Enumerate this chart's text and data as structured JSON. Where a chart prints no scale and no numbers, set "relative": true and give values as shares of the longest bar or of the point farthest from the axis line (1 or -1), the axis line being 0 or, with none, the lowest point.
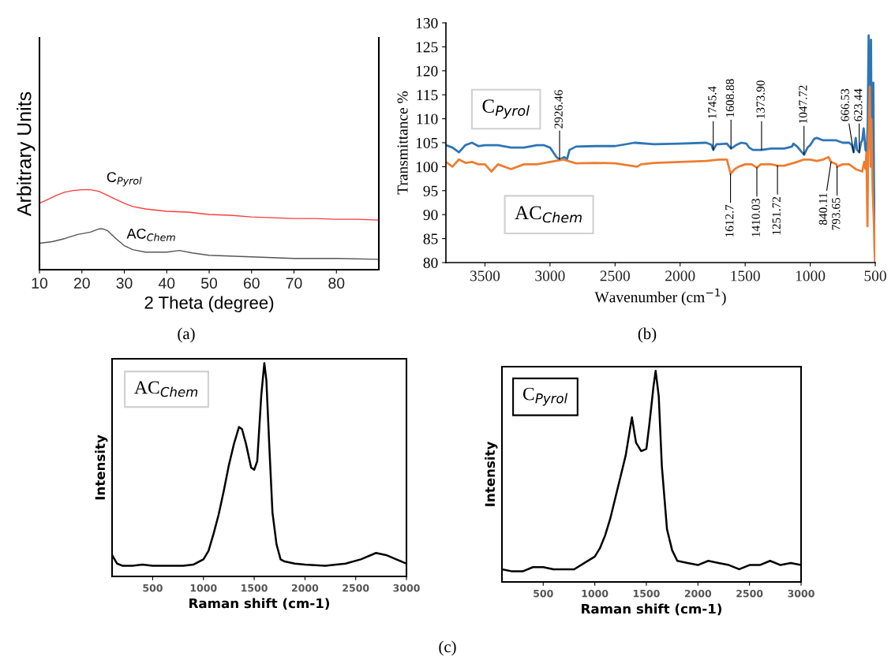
{
  "chart_data": [
    {
      "type": "line",
      "relative": true,
      "xlabel": "2 Theta (degree)",
      "ylabel": "Arbitrary Units",
      "xlim": [
        10,
        90
      ],
      "xticks": [
        10,
        20,
        30,
        40,
        50,
        60,
        70,
        80
      ],
      "annotations": [
        "(a)"
      ],
      "series": [
        {
          "name": "C$_{Pyrol}$",
          "color": "#ff3b3b",
          "x": [
            10,
            12,
            14,
            16,
            18,
            20,
            22,
            24,
            26,
            28,
            30,
            32,
            35,
            40,
            45,
            50,
            55,
            60,
            65,
            70,
            75,
            80,
            85,
            90
          ],
          "values": [
            0.83,
            0.88,
            0.93,
            0.97,
            0.99,
            1.0,
            1.0,
            0.98,
            0.93,
            0.88,
            0.83,
            0.79,
            0.76,
            0.73,
            0.72,
            0.69,
            0.68,
            0.66,
            0.65,
            0.64,
            0.64,
            0.63,
            0.63,
            0.62
          ]
        },
        {
          "name": "AC$_{Chem}$",
          "color": "#555555",
          "x": [
            10,
            13,
            16,
            19,
            22,
            24,
            25,
            26,
            28,
            30,
            32,
            35,
            40,
            43,
            46,
            50,
            55,
            60,
            65,
            70,
            80,
            90
          ],
          "values": [
            0.33,
            0.35,
            0.39,
            0.44,
            0.47,
            0.51,
            0.51,
            0.49,
            0.39,
            0.3,
            0.25,
            0.22,
            0.22,
            0.24,
            0.21,
            0.18,
            0.17,
            0.16,
            0.15,
            0.14,
            0.14,
            0.13
          ]
        }
      ]
    },
    {
      "type": "line",
      "xlabel": "Wavenumber (cm$^{−1}$)",
      "ylabel": "Transmittance %",
      "xlim": [
        3800,
        500
      ],
      "xticks": [
        3500,
        3000,
        2500,
        2000,
        1500,
        1000,
        500
      ],
      "ylim": [
        80,
        130
      ],
      "yticks": [
        80,
        85,
        90,
        95,
        100,
        105,
        110,
        115,
        120,
        125,
        130
      ],
      "annotations": [
        "(b)",
        {
          "text": "2926.46",
          "x": 2926.46,
          "y": 101.5
        },
        {
          "text": "1745.4",
          "x": 1745.4,
          "y": 103.5
        },
        {
          "text": "1608.88",
          "x": 1608.88,
          "y": 103.8
        },
        {
          "text": "1373.90",
          "x": 1373.9,
          "y": 103.5
        },
        {
          "text": "1047.72",
          "x": 1047.72,
          "y": 102.5
        },
        {
          "text": "666.53",
          "x": 666.53,
          "y": 103
        },
        {
          "text": "623.44",
          "x": 623.44,
          "y": 103
        },
        {
          "text": "1612.7",
          "x": 1612.7,
          "y": 98.5
        },
        {
          "text": "1410.03",
          "x": 1410.03,
          "y": 99.8
        },
        {
          "text": "1251.72",
          "x": 1251.72,
          "y": 100.2
        },
        {
          "text": "840.11",
          "x": 840.11,
          "y": 101
        },
        {
          "text": "793.65",
          "x": 793.65,
          "y": 100
        }
      ],
      "series": [
        {
          "name": "C$_{Pyrol}$",
          "color": "#2e75b6",
          "x": [
            3800,
            3750,
            3700,
            3650,
            3600,
            3550,
            3500,
            3400,
            3300,
            3200,
            3100,
            3050,
            3000,
            2950,
            2926,
            2890,
            2870,
            2850,
            2800,
            2650,
            2500,
            2350,
            2200,
            2000,
            1800,
            1760,
            1745,
            1720,
            1700,
            1640,
            1608,
            1570,
            1530,
            1490,
            1470,
            1440,
            1373,
            1300,
            1200,
            1140,
            1130,
            1100,
            1070,
            1047,
            1020,
            1000,
            970,
            950,
            900,
            850,
            800,
            750,
            700,
            680,
            666,
            650,
            640,
            623,
            610,
            600,
            589,
            575,
            565,
            558,
            551,
            545,
            540,
            533,
            528,
            520,
            515,
            510,
            505,
            500
          ],
          "values": [
            104.5,
            104,
            103,
            104.5,
            105,
            104.3,
            104.5,
            104.5,
            104,
            104,
            104.5,
            104.5,
            104,
            102,
            101.5,
            102,
            101.5,
            103.5,
            104.2,
            104.3,
            104.3,
            105,
            104.7,
            104.8,
            105,
            104.6,
            103.5,
            104.7,
            104.7,
            104.8,
            103.8,
            104.5,
            105,
            104.8,
            104,
            103.5,
            103.5,
            103.8,
            103.8,
            104.2,
            104.8,
            104.2,
            103.2,
            102.5,
            104,
            104.5,
            105.8,
            106,
            105.5,
            105.5,
            105.5,
            105,
            105,
            104.5,
            103,
            106,
            103.5,
            103,
            105,
            105.5,
            108,
            103.5,
            103,
            109,
            127.4,
            110,
            104,
            126.5,
            104,
            105,
            117.5,
            96,
            88,
            80
          ]
        },
        {
          "name": "AC$_{Chem}$",
          "color": "#ed7d31",
          "x": [
            3800,
            3750,
            3700,
            3650,
            3600,
            3550,
            3500,
            3450,
            3400,
            3300,
            3200,
            3100,
            3000,
            2900,
            2800,
            2650,
            2500,
            2330,
            2300,
            2200,
            2000,
            1800,
            1700,
            1640,
            1612,
            1580,
            1550,
            1500,
            1450,
            1410,
            1380,
            1300,
            1250,
            1200,
            1100,
            1050,
            1000,
            950,
            900,
            860,
            840,
            800,
            793,
            750,
            700,
            650,
            600,
            585,
            575,
            568,
            560,
            555,
            548,
            542,
            536,
            530,
            520,
            510,
            505,
            500
          ],
          "values": [
            101,
            100,
            101.5,
            100.8,
            101,
            100.5,
            100.5,
            99,
            100.5,
            99.5,
            100.5,
            100.5,
            101,
            101.5,
            100.7,
            100.8,
            100.7,
            100,
            100.5,
            100.8,
            101,
            101.2,
            101.5,
            101.5,
            98.5,
            99.5,
            100,
            100.5,
            100.5,
            99.8,
            100.5,
            100.5,
            100.2,
            100.2,
            101,
            101.5,
            101.5,
            101.2,
            101.5,
            102,
            101,
            100.5,
            100,
            100.5,
            100.5,
            99.5,
            99,
            101,
            99.5,
            103,
            87.6,
            104,
            110,
            116.7,
            100,
            110,
            95,
            88,
            82,
            80
          ]
        }
      ]
    },
    {
      "type": "line",
      "relative": true,
      "xlabel": "Raman shift (cm-1)",
      "ylabel": "Intensity",
      "xlim": [
        100,
        3000
      ],
      "xticks": [
        500,
        1000,
        1500,
        2000,
        2500,
        3000
      ],
      "annotations": [
        "(c)"
      ],
      "series": [
        {
          "name": "AC$_{Chem}$",
          "color": "#000000",
          "x": [
            100,
            150,
            200,
            300,
            400,
            500,
            600,
            700,
            800,
            900,
            1000,
            1050,
            1100,
            1150,
            1200,
            1250,
            1300,
            1350,
            1380,
            1420,
            1470,
            1500,
            1530,
            1570,
            1600,
            1620,
            1650,
            1680,
            1720,
            1760,
            1800,
            1900,
            2000,
            2200,
            2400,
            2550,
            2700,
            2800,
            2900,
            3000
          ],
          "values": [
            0.1,
            0.06,
            0.05,
            0.05,
            0.055,
            0.05,
            0.05,
            0.05,
            0.05,
            0.055,
            0.08,
            0.12,
            0.2,
            0.29,
            0.4,
            0.52,
            0.62,
            0.7,
            0.69,
            0.62,
            0.51,
            0.5,
            0.54,
            0.85,
            1.0,
            0.92,
            0.6,
            0.3,
            0.15,
            0.08,
            0.07,
            0.06,
            0.055,
            0.05,
            0.06,
            0.08,
            0.11,
            0.1,
            0.08,
            0.06
          ]
        }
      ]
    },
    {
      "type": "line",
      "relative": true,
      "xlabel": "Raman shift (cm-1)",
      "ylabel": "Intensity",
      "xlim": [
        100,
        3000
      ],
      "xticks": [
        500,
        1000,
        1500,
        2000,
        2500,
        3000
      ],
      "series": [
        {
          "name": "C$_{Pyrol}$",
          "color": "#000000",
          "x": [
            100,
            200,
            300,
            400,
            500,
            600,
            700,
            800,
            900,
            1000,
            1050,
            1100,
            1150,
            1200,
            1250,
            1300,
            1340,
            1360,
            1400,
            1450,
            1500,
            1530,
            1570,
            1590,
            1620,
            1650,
            1700,
            1750,
            1800,
            1900,
            2000,
            2100,
            2200,
            2300,
            2400,
            2500,
            2600,
            2700,
            2800,
            2900,
            3000
          ],
          "values": [
            0.06,
            0.05,
            0.05,
            0.07,
            0.07,
            0.06,
            0.06,
            0.06,
            0.09,
            0.12,
            0.16,
            0.22,
            0.3,
            0.4,
            0.5,
            0.6,
            0.72,
            0.78,
            0.66,
            0.62,
            0.63,
            0.75,
            0.93,
            1.0,
            0.88,
            0.55,
            0.25,
            0.15,
            0.1,
            0.09,
            0.08,
            0.1,
            0.09,
            0.08,
            0.06,
            0.08,
            0.08,
            0.1,
            0.08,
            0.09,
            0.08
          ]
        }
      ]
    }
  ]
}
